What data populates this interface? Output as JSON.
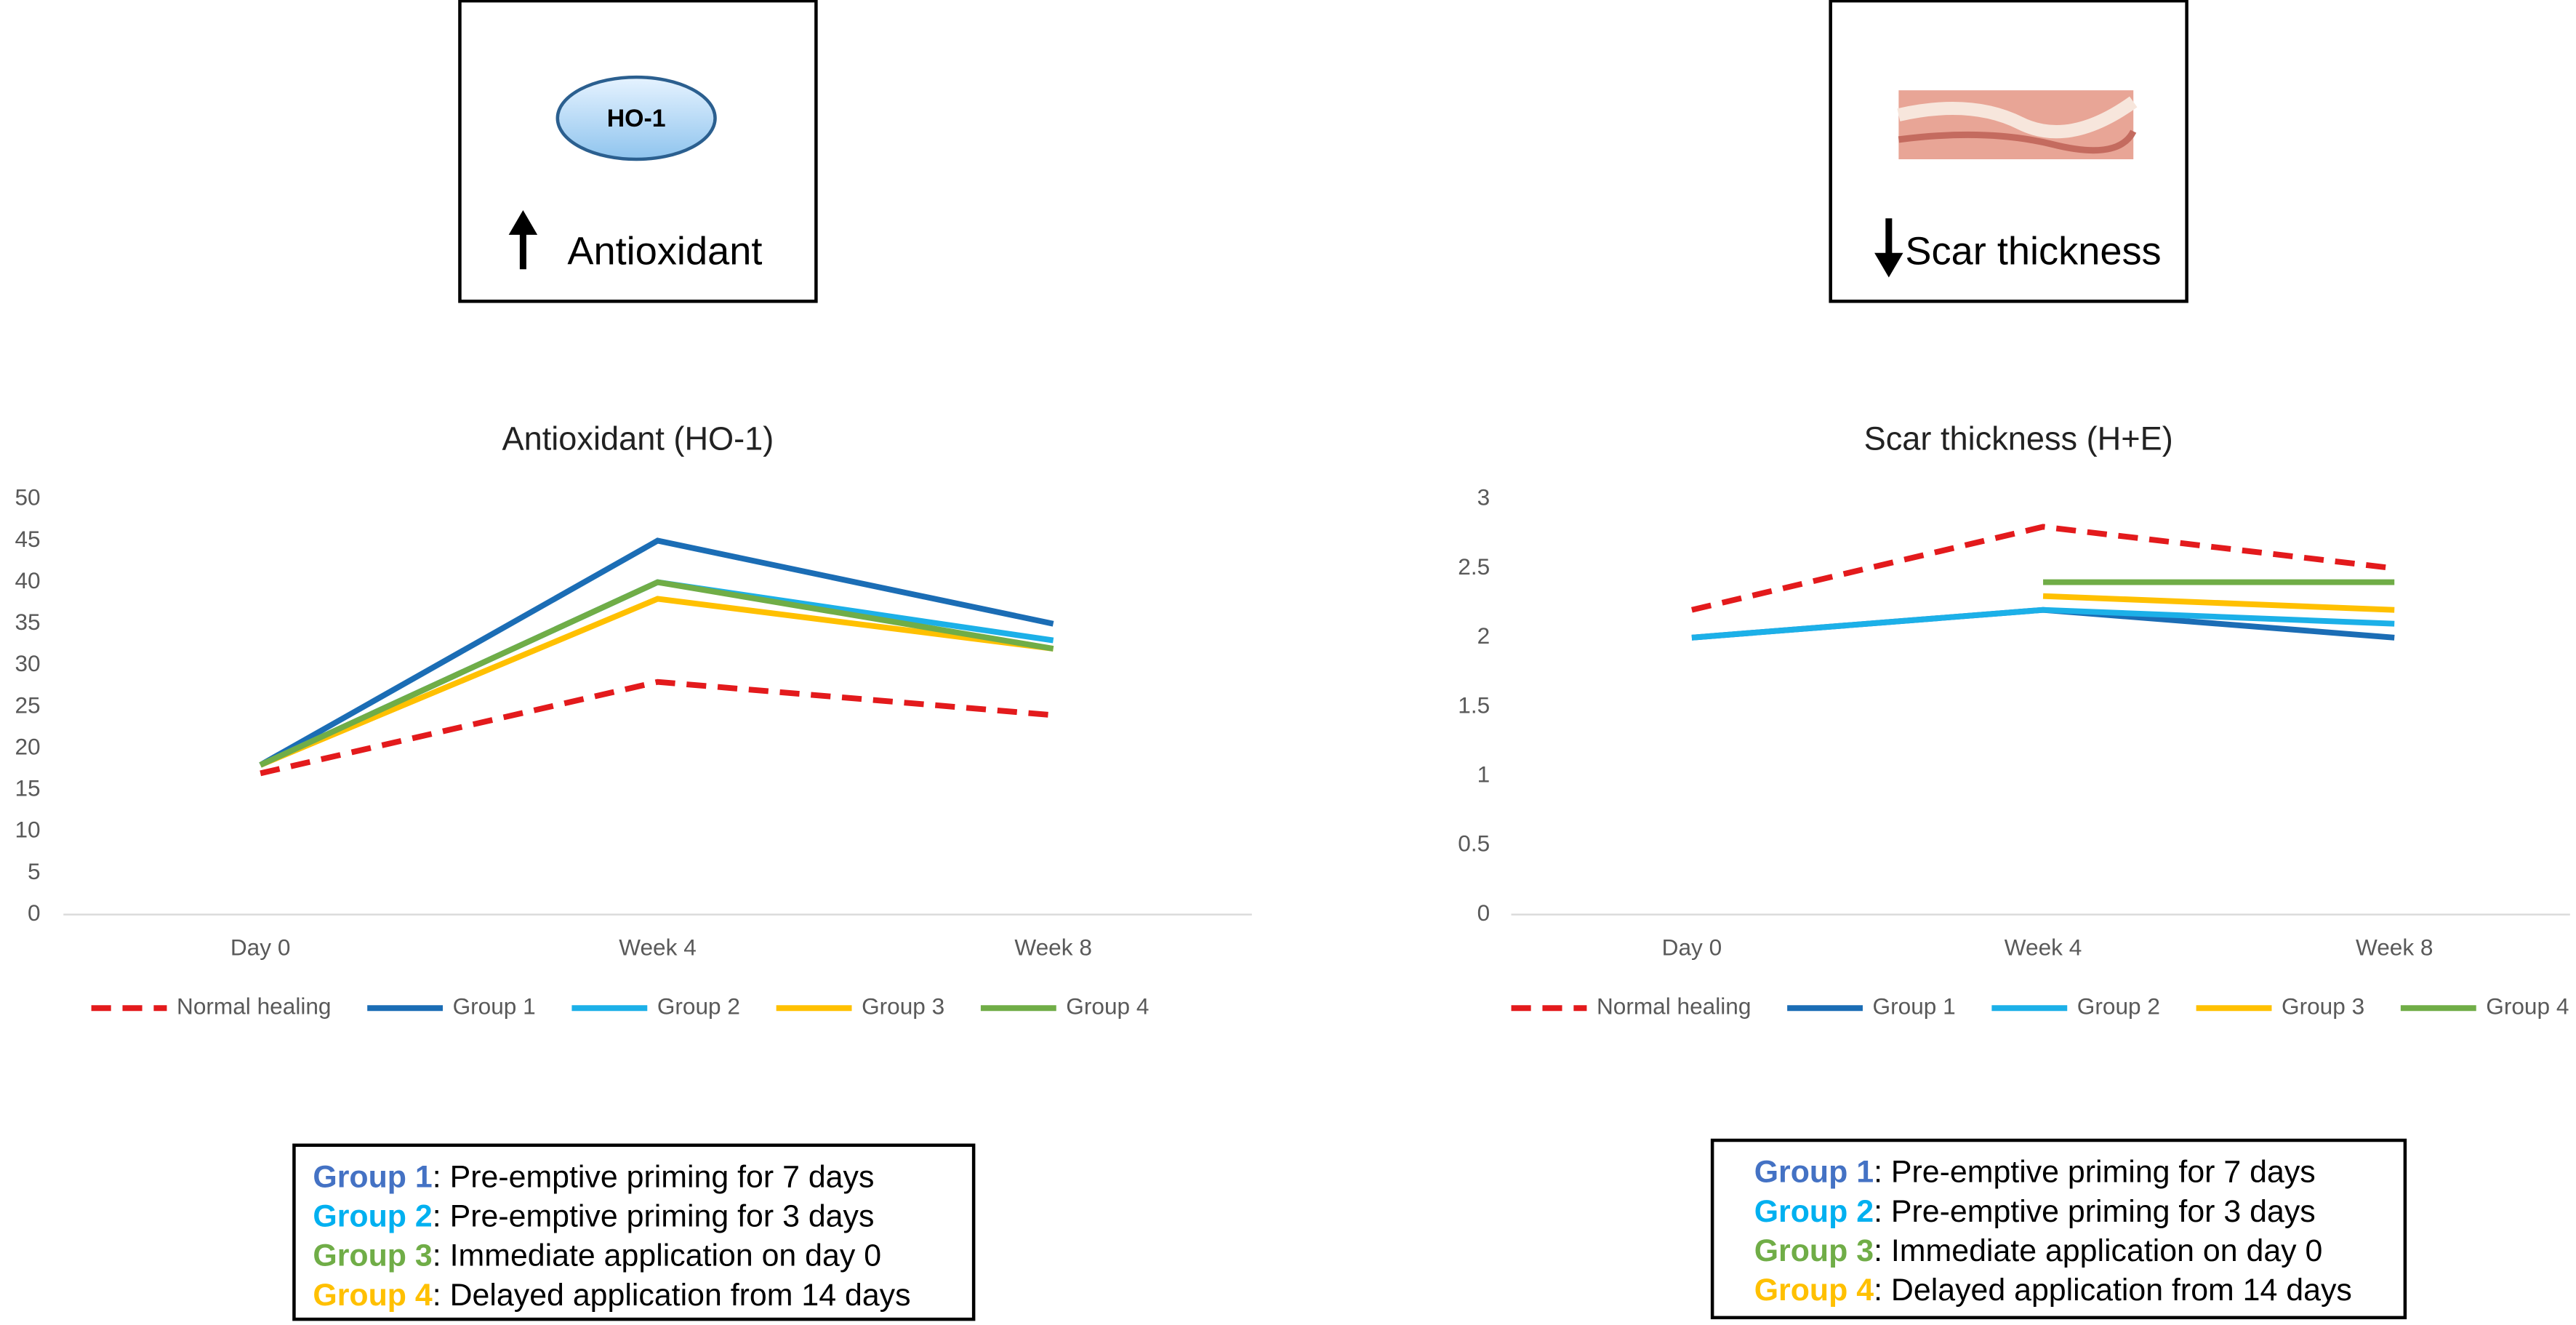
{
  "chart_data": [
    {
      "type": "line",
      "title": "Antioxidant (HO-1)",
      "categories": [
        "Day 0",
        "Week 4",
        "Week 8"
      ],
      "ylim": [
        0,
        50
      ],
      "yticks": [
        0,
        5,
        10,
        15,
        20,
        25,
        30,
        35,
        40,
        45,
        50
      ],
      "grid": false,
      "series": [
        {
          "name": "Normal healing",
          "color": "#e31a1c",
          "dashed": true,
          "values": [
            17,
            28,
            24
          ]
        },
        {
          "name": "Group 1",
          "color": "#1b6db5",
          "values": [
            18,
            45,
            35
          ]
        },
        {
          "name": "Group 2",
          "color": "#1cb0e8",
          "values": [
            18,
            40,
            33
          ]
        },
        {
          "name": "Group 3",
          "color": "#ffc000",
          "values": [
            18,
            38,
            32
          ]
        },
        {
          "name": "Group 4",
          "color": "#70ad47",
          "values": [
            18,
            40,
            32
          ]
        }
      ]
    },
    {
      "type": "line",
      "title": "Scar thickness (H+E)",
      "categories": [
        "Day 0",
        "Week 4",
        "Week 8"
      ],
      "ylim": [
        0,
        3
      ],
      "yticks": [
        0,
        0.5,
        1,
        1.5,
        2,
        2.5,
        3
      ],
      "grid": false,
      "series": [
        {
          "name": "Normal healing",
          "color": "#e31a1c",
          "dashed": true,
          "values": [
            2.2,
            2.8,
            2.5
          ]
        },
        {
          "name": "Group 1",
          "color": "#1b6db5",
          "values": [
            2.0,
            2.2,
            2.0
          ]
        },
        {
          "name": "Group 2",
          "color": "#1cb0e8",
          "values": [
            2.0,
            2.2,
            2.1
          ]
        },
        {
          "name": "Group 3",
          "color": "#ffc000",
          "values": [
            null,
            2.3,
            2.2
          ]
        },
        {
          "name": "Group 4",
          "color": "#70ad47",
          "values": [
            null,
            2.4,
            2.4
          ]
        }
      ]
    }
  ],
  "icons": [
    {
      "badge": "HO-1",
      "label": "Antioxidant"
    },
    {
      "label": "Scar thickness"
    }
  ],
  "notes": [
    [
      {
        "group": "Group 1",
        "color": "#4472c4",
        "text": ": Pre-emptive priming for 7 days"
      },
      {
        "group": "Group 2",
        "color": "#00b0f0",
        "text": ": Pre-emptive priming for 3 days"
      },
      {
        "group": "Group 3",
        "color": "#70ad47",
        "text": ": Immediate application on day 0"
      },
      {
        "group": "Group 4",
        "color": "#ffc000",
        "text": ": Delayed application from 14 days"
      }
    ],
    [
      {
        "group": "Group 1",
        "color": "#4472c4",
        "text": ": Pre-emptive priming for 7 days"
      },
      {
        "group": "Group 2",
        "color": "#00b0f0",
        "text": ": Pre-emptive priming for 3 days"
      },
      {
        "group": "Group 3",
        "color": "#70ad47",
        "text": ": Immediate application on day 0"
      },
      {
        "group": "Group 4",
        "color": "#ffc000",
        "text": ": Delayed application from 14 days"
      }
    ]
  ]
}
